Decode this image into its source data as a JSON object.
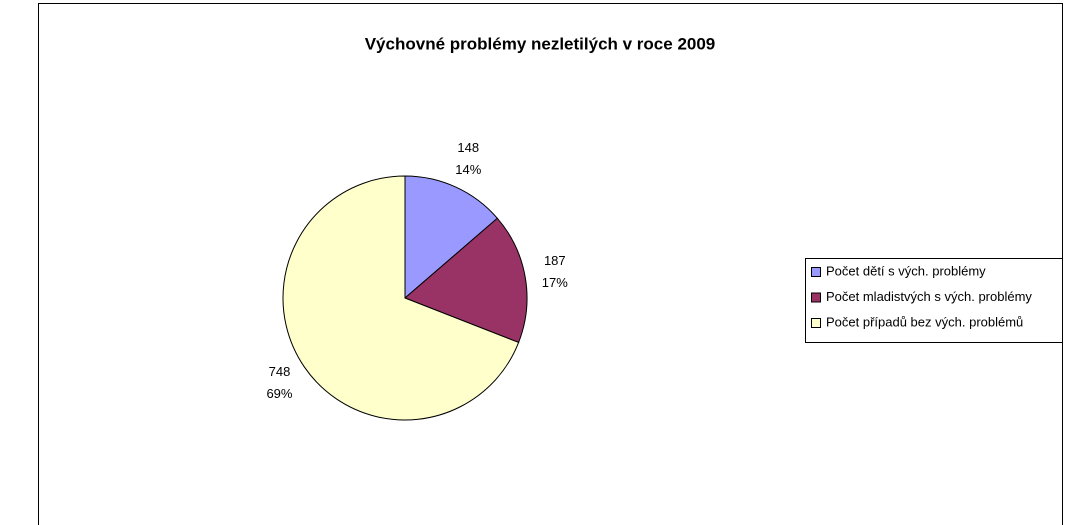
{
  "chart_data": {
    "type": "pie",
    "title": "Výchovné problémy nezletilých v roce 2009",
    "categories": [
      "Počet dětí s vých. problémy",
      "Počet mladistvých s vých. problémy",
      "Počet případů bez vých. problémů"
    ],
    "values": [
      148,
      187,
      748
    ],
    "percentages": [
      14,
      17,
      69
    ],
    "percentage_labels": [
      "14%",
      "17%",
      "69%"
    ],
    "colors": [
      "#9999ff",
      "#993366",
      "#ffffcc"
    ],
    "legend": "right"
  }
}
